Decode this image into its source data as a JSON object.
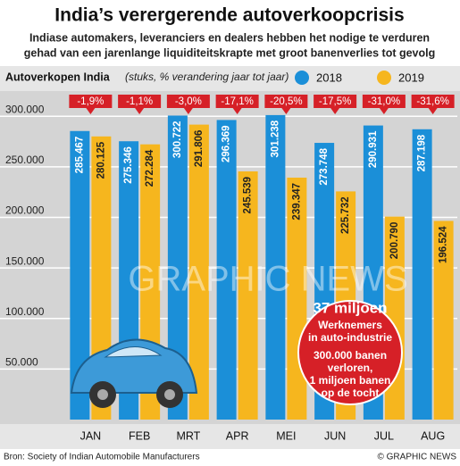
{
  "chart_data": {
    "type": "bar",
    "title": "India’s verergerende autoverkoopcrisis",
    "subtitle": [
      "Indiase automakers, leveranciers en dealers hebben het nodige te verduren",
      "gehad van een jarenlange liquiditeitskrapte met groot banenverlies tot gevolg"
    ],
    "chart_label": "Autoverkopen India",
    "chart_note": "(stuks, % verandering jaar tot jaar)",
    "categories": [
      "JAN",
      "FEB",
      "MRT",
      "APR",
      "MEI",
      "JUN",
      "JUL",
      "AUG"
    ],
    "series": [
      {
        "name": "2018",
        "color": "#1b8fd8",
        "values": [
          285467,
          275346,
          300722,
          296369,
          301238,
          273748,
          290931,
          287198
        ],
        "value_labels": [
          "285.467",
          "275.346",
          "300.722",
          "296.369",
          "301.238",
          "273.748",
          "290.931",
          "287.198"
        ]
      },
      {
        "name": "2019",
        "color": "#f6b61e",
        "values": [
          280125,
          272284,
          291806,
          245539,
          239347,
          225732,
          200790,
          196524
        ],
        "value_labels": [
          "280.125",
          "272.284",
          "291.806",
          "245.539",
          "239.347",
          "225.732",
          "200.790",
          "196.524"
        ]
      }
    ],
    "change_labels": [
      "-1,9%",
      "-1,1%",
      "-3,0%",
      "-17,1%",
      "-20,5%",
      "-17,5%",
      "-31,0%",
      "-31,6%"
    ],
    "ylim": [
      0,
      325000
    ],
    "yticks": [
      {
        "value": 50000,
        "label": "50.000"
      },
      {
        "value": 100000,
        "label": "100.000"
      },
      {
        "value": 150000,
        "label": "150.000"
      },
      {
        "value": 200000,
        "label": "200.000"
      },
      {
        "value": 250000,
        "label": "250.000"
      },
      {
        "value": 300000,
        "label": "300.000"
      }
    ],
    "grid": true,
    "callout": {
      "headline": "37 miljoen",
      "lines": [
        "Werknemers",
        "in auto-industrie"
      ],
      "lines2": [
        "300.000 banen",
        "verloren,",
        "1 miljoen banen",
        "op de tocht"
      ]
    },
    "watermark": "GRAPHIC NEWS",
    "source": "Bron: Society of Indian Automobile Manufacturers",
    "credit": "© GRAPHIC NEWS"
  }
}
